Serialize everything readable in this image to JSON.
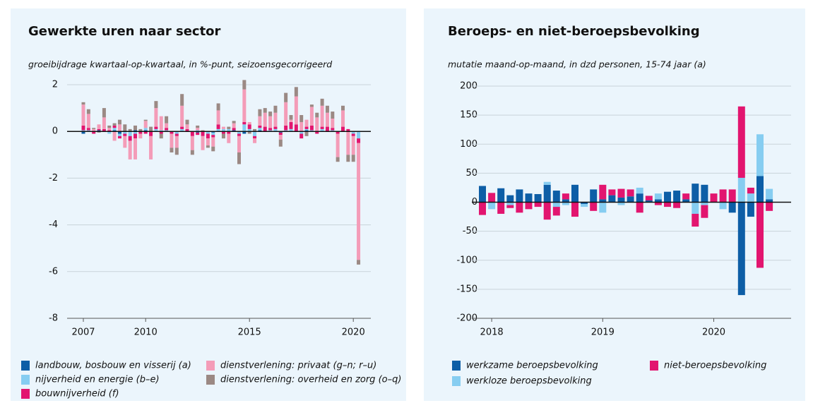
{
  "chart_data": [
    {
      "type": "bar",
      "stacked": true,
      "title": "Gewerkte uren naar sector",
      "subtitle": "groeibijdrage kwartaal-op-kwartaal, in %-punt, seizoensgecorrigeerd",
      "categories": [
        "2007",
        null,
        null,
        null,
        null,
        null,
        null,
        null,
        null,
        null,
        null,
        null,
        "2010",
        null,
        null,
        null,
        null,
        null,
        null,
        null,
        null,
        null,
        null,
        null,
        null,
        null,
        null,
        null,
        null,
        null,
        null,
        null,
        "2015",
        null,
        null,
        null,
        null,
        null,
        null,
        null,
        null,
        null,
        null,
        null,
        null,
        null,
        null,
        null,
        null,
        null,
        null,
        null,
        "2020",
        null
      ],
      "ylim": [
        -8,
        2
      ],
      "yticks": [
        -8,
        -6,
        -4,
        -2,
        0,
        2
      ],
      "grid": true,
      "series": [
        {
          "name": "landbouw, bosbouw en visserij (a)",
          "color": "#0d5ea6",
          "values": [
            -0.1,
            0,
            0,
            0.05,
            0,
            0,
            0.05,
            -0.1,
            0,
            0,
            0.05,
            0,
            0.05,
            0,
            0,
            0,
            0,
            0,
            0,
            0,
            0,
            0,
            -0.05,
            0,
            0,
            -0.05,
            0,
            0,
            0,
            0.05,
            0,
            -0.1,
            0,
            0,
            0.05,
            0,
            0,
            0,
            -0.05,
            0,
            0,
            0,
            0,
            0.05,
            0,
            0,
            0,
            0,
            0,
            0,
            0,
            0,
            0,
            0
          ]
        },
        {
          "name": "nijverheid en energie (b–e)",
          "color": "#86cdf1",
          "values": [
            0.05,
            0.05,
            0,
            0,
            0,
            -0.1,
            0.1,
            -0.1,
            -0.1,
            -0.2,
            -0.1,
            0,
            0.1,
            0,
            0.1,
            0.05,
            0.05,
            0,
            -0.1,
            0.1,
            0,
            0,
            0.05,
            0,
            -0.1,
            -0.1,
            0.1,
            0.1,
            0.1,
            0,
            -0.1,
            0.3,
            0.1,
            -0.2,
            0.1,
            0,
            0.05,
            0.1,
            0,
            0.05,
            0.1,
            0,
            -0.1,
            0.05,
            0.05,
            0,
            0.1,
            0,
            0.05,
            0,
            0,
            0,
            -0.1,
            -0.3
          ]
        },
        {
          "name": "bouwnijverheid (f)",
          "color": "#e2156f",
          "values": [
            0.2,
            0.1,
            -0.1,
            0.05,
            0.1,
            0.05,
            0.1,
            -0.1,
            -0.1,
            -0.2,
            -0.2,
            -0.1,
            -0.1,
            -0.2,
            0.1,
            -0.1,
            0.1,
            -0.1,
            -0.1,
            0.1,
            0.1,
            -0.2,
            -0.1,
            -0.2,
            -0.2,
            -0.1,
            0.2,
            -0.1,
            -0.1,
            0.1,
            -0.1,
            0.1,
            0.2,
            -0.1,
            0.1,
            0.2,
            0.1,
            0.1,
            -0.1,
            0.2,
            0.3,
            0.3,
            -0.2,
            0.1,
            0.2,
            -0.1,
            0.1,
            0.2,
            0.1,
            -0.1,
            0.2,
            0.1,
            -0.1,
            -0.2
          ]
        },
        {
          "name": "dienstverlening: privaat (g–n; r–u)",
          "color": "#f49cb8",
          "values": [
            0.9,
            0.6,
            0.1,
            0.2,
            0.5,
            0.1,
            -0.4,
            0.3,
            -0.5,
            -0.8,
            -0.9,
            -0.2,
            0.3,
            -1.0,
            0.8,
            0.6,
            0.2,
            -0.6,
            -0.5,
            0.9,
            0.2,
            -0.6,
            0.1,
            -0.6,
            -0.3,
            -0.4,
            0.6,
            0.1,
            -0.4,
            0.2,
            -0.7,
            1.4,
            0.1,
            -0.2,
            0.4,
            0.6,
            0.5,
            0.6,
            -0.2,
            1.0,
            0.1,
            1.2,
            0.4,
            0.3,
            0.8,
            0.6,
            0.9,
            0.6,
            0.4,
            -1.0,
            0.7,
            -1.0,
            -0.8,
            -5.0
          ]
        },
        {
          "name": "dienstverlening: overheid en zorg (o–q)",
          "color": "#9b8984",
          "values": [
            0.1,
            0.2,
            0.05,
            -0.05,
            0.4,
            0.1,
            0.1,
            0.2,
            0.3,
            0.1,
            0.2,
            0.1,
            0.05,
            0.2,
            0.3,
            -0.2,
            0.3,
            -0.2,
            -0.3,
            0.5,
            0.2,
            -0.2,
            0.1,
            0.05,
            -0.1,
            -0.2,
            0.3,
            -0.2,
            0.1,
            0.1,
            -0.5,
            0.4,
            -0.1,
            0.1,
            0.3,
            0.2,
            0.2,
            0.3,
            -0.3,
            0.4,
            0.2,
            0.4,
            0.3,
            -0.2,
            0.1,
            0.2,
            0.3,
            0.3,
            0.3,
            -0.2,
            0.2,
            -0.3,
            -0.3,
            -0.2
          ]
        }
      ]
    },
    {
      "type": "bar",
      "stacked": true,
      "title": "Beroeps- en niet-beroepsbevolking",
      "subtitle": "mutatie maand-op-maand, in dzd personen, 15-74 jaar (a)",
      "categories": [
        null,
        "2018",
        null,
        null,
        null,
        null,
        null,
        null,
        null,
        null,
        null,
        null,
        null,
        "2019",
        null,
        null,
        null,
        null,
        null,
        null,
        null,
        null,
        null,
        null,
        null,
        "2020",
        null,
        null,
        null,
        null,
        null,
        null
      ],
      "ylim": [
        -200,
        200
      ],
      "yticks": [
        -200,
        -150,
        -100,
        -50,
        0,
        50,
        100,
        150,
        200
      ],
      "grid": true,
      "series": [
        {
          "name": "werkzame beroepsbevolking",
          "color": "#0d5ea6",
          "values": [
            28,
            0,
            24,
            12,
            22,
            15,
            14,
            30,
            20,
            5,
            30,
            -3,
            22,
            5,
            12,
            8,
            10,
            15,
            3,
            5,
            18,
            20,
            5,
            32,
            30,
            0,
            0,
            -18,
            -160,
            -25,
            45,
            5
          ]
        },
        {
          "name": "niet-beroepsbevolking",
          "color": "#e2156f",
          "values": [
            -22,
            16,
            -20,
            -5,
            -18,
            -12,
            -8,
            -30,
            -15,
            10,
            -25,
            0,
            -15,
            25,
            10,
            15,
            12,
            -18,
            8,
            -5,
            -8,
            -10,
            10,
            -22,
            -22,
            15,
            22,
            22,
            123,
            10,
            -113,
            -15
          ]
        },
        {
          "name": "werkloze beroepsbevolking",
          "color": "#86cdf1",
          "values": [
            0,
            -12,
            0,
            -5,
            0,
            0,
            0,
            5,
            -8,
            -5,
            0,
            -5,
            0,
            -18,
            0,
            -5,
            0,
            10,
            0,
            10,
            0,
            0,
            0,
            -20,
            -5,
            0,
            -12,
            0,
            42,
            15,
            72,
            18
          ]
        }
      ]
    }
  ]
}
